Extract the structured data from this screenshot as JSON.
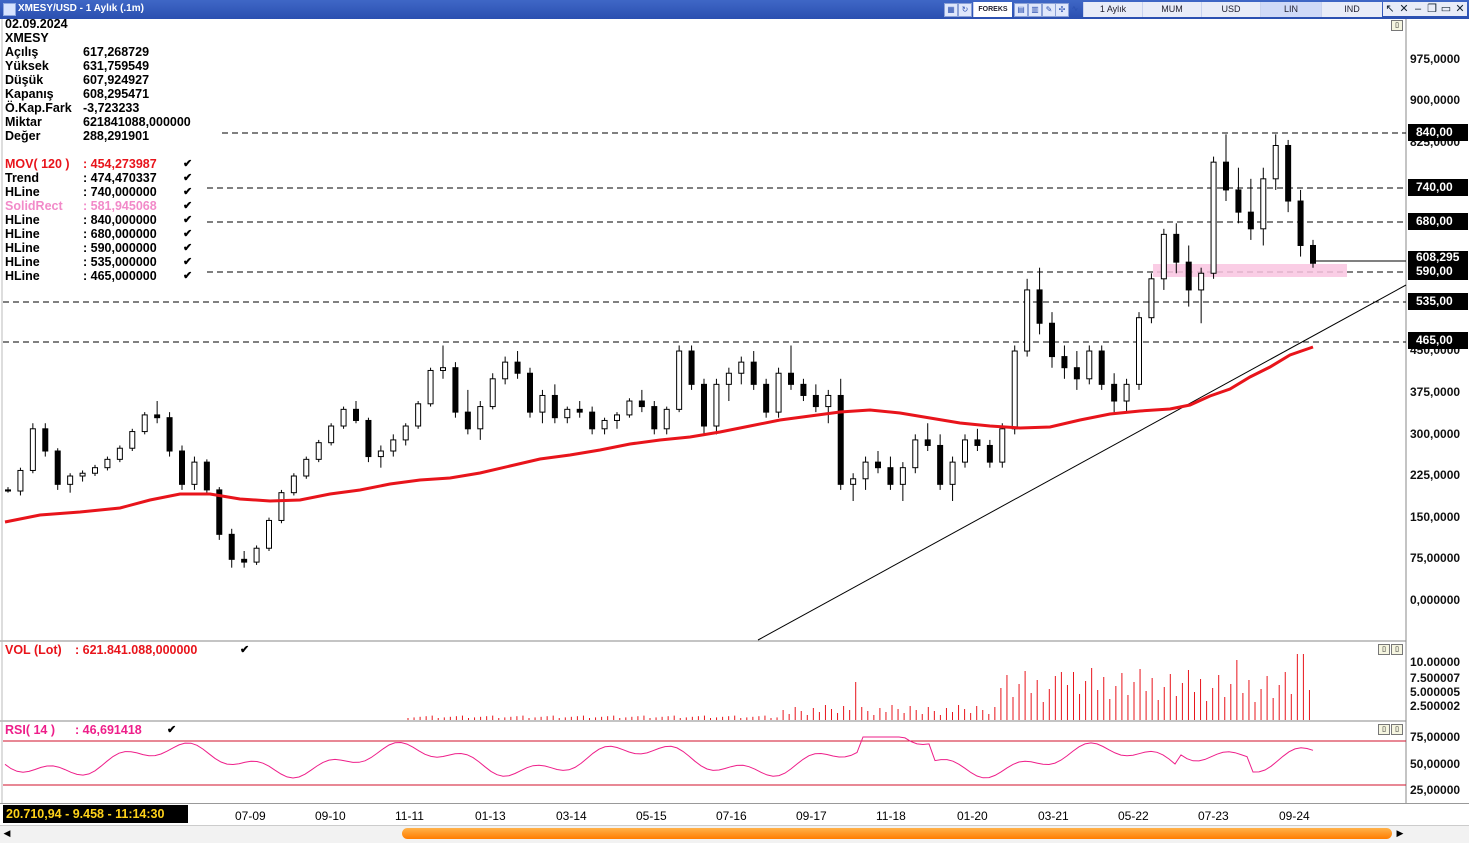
{
  "window": {
    "title": "XMESY/USD - 1 Aylık (.1m)",
    "toolbar_brand": "FOREKS",
    "tabs": [
      "1 Aylık",
      "MUM",
      "USD",
      "LIN",
      "IND"
    ],
    "active_tab": "LIN"
  },
  "info": {
    "date": "02.09.2024",
    "symbol": "XMESY",
    "rows": [
      {
        "label": "Açılış",
        "value": "617,268729"
      },
      {
        "label": "Yüksek",
        "value": "631,759549"
      },
      {
        "label": "Düşük",
        "value": "607,924927"
      },
      {
        "label": "Kapanış",
        "value": "608,295471"
      },
      {
        "label": "Ö.Kap.Fark",
        "value": "-3,723233"
      },
      {
        "label": "Miktar",
        "value": "621841088,000000"
      },
      {
        "label": "Değer",
        "value": "288,291901"
      }
    ]
  },
  "indicators": [
    {
      "label": "MOV( 120 )",
      "value": ": 454,273987",
      "color": "#e8141b"
    },
    {
      "label": "Trend",
      "value": ": 474,470337",
      "color": "#000000"
    },
    {
      "label": "HLine",
      "value": ": 740,000000",
      "color": "#000000"
    },
    {
      "label": "SolidRect",
      "value": ": 581,945068",
      "color": "#f28ac9"
    },
    {
      "label": "HLine",
      "value": ": 840,000000",
      "color": "#000000"
    },
    {
      "label": "HLine",
      "value": ": 680,000000",
      "color": "#000000"
    },
    {
      "label": "HLine",
      "value": ": 590,000000",
      "color": "#000000"
    },
    {
      "label": "HLine",
      "value": ": 535,000000",
      "color": "#000000"
    },
    {
      "label": "HLine",
      "value": ": 465,000000",
      "color": "#000000"
    }
  ],
  "price_axis": [
    "975,0000",
    "900,0000",
    "825,0000",
    "450,0000",
    "375,0000",
    "300,0000",
    "225,0000",
    "150,0000",
    "75,00000",
    "0,000000"
  ],
  "hline_tags": [
    "840,00",
    "740,00",
    "680,00",
    "608,295",
    "590,00",
    "535,00",
    "465,00"
  ],
  "volume": {
    "label": "VOL (Lot)",
    "value": ": 621.841.088,000000",
    "axis": [
      "10.00000",
      "7.500007",
      "5.000005",
      "2.500002"
    ]
  },
  "rsi": {
    "label": "RSI( 14 )",
    "value": ": 46,691418",
    "axis": [
      "75,00000",
      "50,00000",
      "25,00000"
    ]
  },
  "date_axis": [
    "07-09",
    "09-10",
    "11-11",
    "01-13",
    "03-14",
    "05-15",
    "07-16",
    "09-17",
    "11-18",
    "01-20",
    "03-21",
    "05-22",
    "07-23",
    "09-24"
  ],
  "status_text": "20.710,94 - 9.458 - 11:14:30",
  "chart_data": {
    "type": "candlestick",
    "price_range": [
      0,
      1000
    ],
    "moving_average": {
      "name": "MOV( 120 )",
      "last": 454.27
    },
    "hlines": [
      840,
      740,
      680,
      590,
      535,
      465
    ],
    "solid_rect": 581.95,
    "last_close": 608.295,
    "candles_approx": [
      [
        200,
        205,
        195,
        198
      ],
      [
        198,
        240,
        190,
        235
      ],
      [
        235,
        320,
        230,
        310
      ],
      [
        310,
        320,
        260,
        270
      ],
      [
        270,
        275,
        200,
        210
      ],
      [
        210,
        230,
        195,
        225
      ],
      [
        225,
        235,
        215,
        230
      ],
      [
        230,
        245,
        225,
        240
      ],
      [
        240,
        260,
        235,
        255
      ],
      [
        255,
        280,
        250,
        275
      ],
      [
        275,
        310,
        270,
        305
      ],
      [
        305,
        340,
        300,
        335
      ],
      [
        335,
        360,
        320,
        330
      ],
      [
        330,
        340,
        260,
        270
      ],
      [
        270,
        280,
        200,
        210
      ],
      [
        210,
        260,
        200,
        250
      ],
      [
        250,
        255,
        190,
        200
      ],
      [
        200,
        205,
        110,
        120
      ],
      [
        120,
        130,
        60,
        75
      ],
      [
        75,
        90,
        60,
        70
      ],
      [
        70,
        100,
        65,
        95
      ],
      [
        95,
        150,
        90,
        145
      ],
      [
        145,
        200,
        140,
        195
      ],
      [
        195,
        230,
        190,
        225
      ],
      [
        225,
        260,
        220,
        255
      ],
      [
        255,
        290,
        250,
        285
      ],
      [
        285,
        320,
        280,
        315
      ],
      [
        315,
        350,
        310,
        345
      ],
      [
        345,
        360,
        320,
        325
      ],
      [
        325,
        330,
        250,
        260
      ],
      [
        260,
        280,
        240,
        270
      ],
      [
        270,
        300,
        260,
        290
      ],
      [
        290,
        320,
        280,
        315
      ],
      [
        315,
        360,
        310,
        355
      ],
      [
        355,
        420,
        350,
        415
      ],
      [
        415,
        460,
        400,
        420
      ],
      [
        420,
        430,
        330,
        340
      ],
      [
        340,
        380,
        300,
        310
      ],
      [
        310,
        360,
        290,
        350
      ],
      [
        350,
        410,
        345,
        400
      ],
      [
        400,
        440,
        390,
        430
      ],
      [
        430,
        450,
        400,
        410
      ],
      [
        410,
        420,
        330,
        340
      ],
      [
        340,
        380,
        320,
        370
      ],
      [
        370,
        390,
        320,
        330
      ],
      [
        330,
        350,
        320,
        345
      ],
      [
        345,
        360,
        330,
        340
      ],
      [
        340,
        350,
        300,
        310
      ],
      [
        310,
        330,
        300,
        325
      ],
      [
        325,
        340,
        310,
        335
      ],
      [
        335,
        365,
        330,
        360
      ],
      [
        360,
        380,
        340,
        350
      ],
      [
        350,
        360,
        300,
        310
      ],
      [
        310,
        350,
        300,
        345
      ],
      [
        345,
        460,
        340,
        450
      ],
      [
        450,
        460,
        380,
        390
      ],
      [
        390,
        400,
        300,
        315
      ],
      [
        315,
        400,
        300,
        390
      ],
      [
        390,
        420,
        360,
        410
      ],
      [
        410,
        440,
        390,
        430
      ],
      [
        430,
        450,
        380,
        390
      ],
      [
        390,
        400,
        330,
        340
      ],
      [
        340,
        420,
        330,
        410
      ],
      [
        410,
        460,
        380,
        390
      ],
      [
        390,
        400,
        360,
        370
      ],
      [
        370,
        390,
        340,
        350
      ],
      [
        350,
        380,
        320,
        370
      ],
      [
        370,
        400,
        200,
        210
      ],
      [
        210,
        230,
        180,
        220
      ],
      [
        220,
        260,
        200,
        250
      ],
      [
        250,
        270,
        230,
        240
      ],
      [
        240,
        260,
        200,
        210
      ],
      [
        210,
        250,
        180,
        240
      ],
      [
        240,
        300,
        230,
        290
      ],
      [
        290,
        320,
        270,
        280
      ],
      [
        280,
        300,
        200,
        210
      ],
      [
        210,
        260,
        180,
        250
      ],
      [
        250,
        300,
        240,
        290
      ],
      [
        290,
        310,
        270,
        280
      ],
      [
        280,
        290,
        240,
        250
      ],
      [
        250,
        320,
        240,
        310
      ],
      [
        310,
        460,
        300,
        450
      ],
      [
        450,
        580,
        440,
        560
      ],
      [
        560,
        600,
        480,
        500
      ],
      [
        500,
        520,
        420,
        440
      ],
      [
        440,
        460,
        400,
        420
      ],
      [
        420,
        450,
        380,
        400
      ],
      [
        400,
        460,
        390,
        450
      ],
      [
        450,
        460,
        380,
        390
      ],
      [
        390,
        410,
        340,
        360
      ],
      [
        360,
        400,
        340,
        390
      ],
      [
        390,
        520,
        380,
        510
      ],
      [
        510,
        590,
        500,
        580
      ],
      [
        580,
        670,
        560,
        660
      ],
      [
        660,
        680,
        590,
        610
      ],
      [
        610,
        640,
        530,
        560
      ],
      [
        560,
        600,
        500,
        590
      ],
      [
        590,
        800,
        580,
        790
      ],
      [
        790,
        840,
        720,
        740
      ],
      [
        740,
        780,
        680,
        700
      ],
      [
        700,
        760,
        650,
        670
      ],
      [
        670,
        780,
        640,
        760
      ],
      [
        760,
        840,
        740,
        820
      ],
      [
        820,
        830,
        700,
        720
      ],
      [
        720,
        740,
        620,
        640
      ],
      [
        640,
        650,
        600,
        608
      ]
    ]
  }
}
